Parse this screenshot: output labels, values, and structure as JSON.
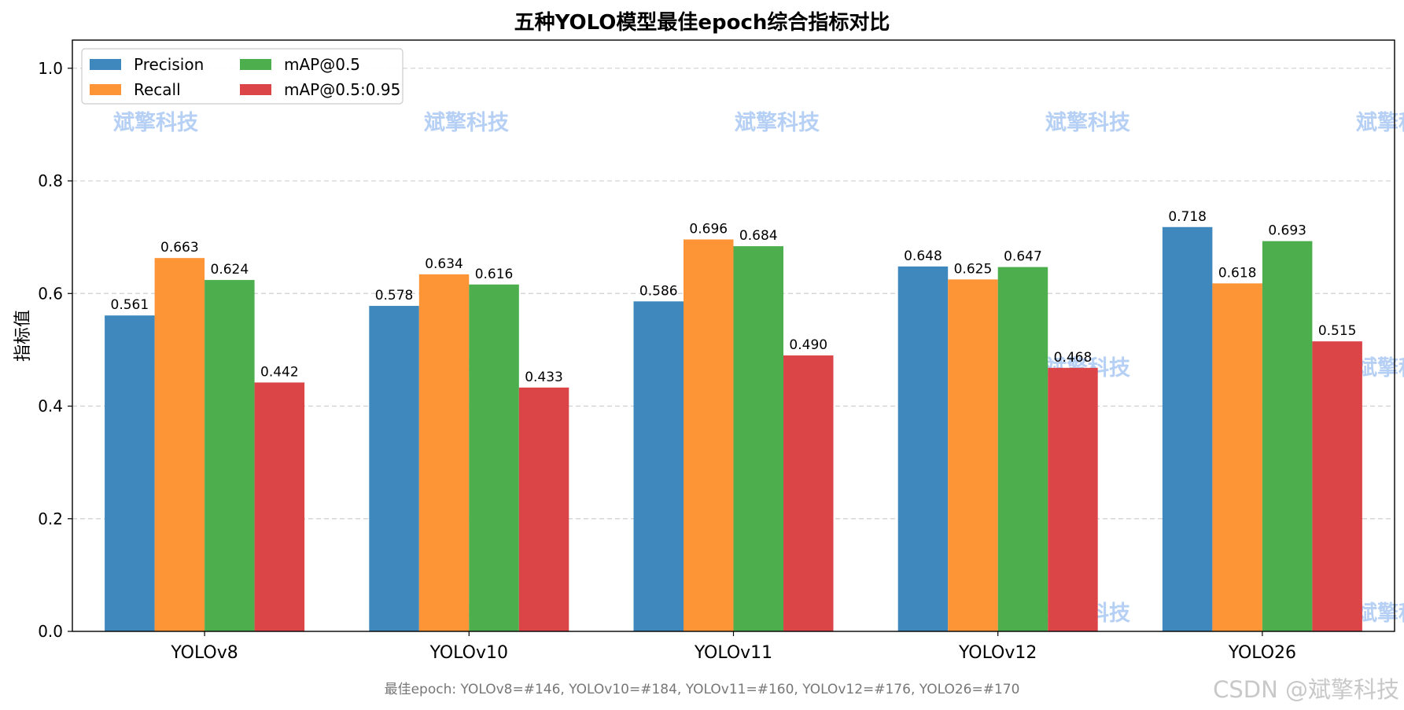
{
  "chart_data": {
    "type": "bar",
    "title": "五种YOLO模型最佳epoch综合指标对比",
    "xlabel": "",
    "ylabel": "指标值",
    "categories": [
      "YOLOv8",
      "YOLOv10",
      "YOLOv11",
      "YOLOv12",
      "YOLO26"
    ],
    "series": [
      {
        "name": "Precision",
        "color": "#3f88be",
        "values": [
          0.561,
          0.578,
          0.586,
          0.648,
          0.718
        ]
      },
      {
        "name": "Recall",
        "color": "#fd9537",
        "values": [
          0.663,
          0.634,
          0.696,
          0.625,
          0.618
        ]
      },
      {
        "name": "mAP@0.5",
        "color": "#4cae4c",
        "values": [
          0.624,
          0.616,
          0.684,
          0.647,
          0.693
        ]
      },
      {
        "name": "mAP@0.5:0.95",
        "color": "#db4548",
        "values": [
          0.442,
          0.433,
          0.49,
          0.468,
          0.515
        ]
      }
    ],
    "ylim": [
      0,
      1.05
    ],
    "yticks": [
      "0.0",
      "0.2",
      "0.4",
      "0.6",
      "0.8",
      "1.0"
    ],
    "grid": true,
    "legend_position": "top-left",
    "data_labels": true,
    "footnote": "最佳epoch: YOLOv8=#146, YOLOv10=#184, YOLOv11=#160, YOLOv12=#176, YOLO26=#170"
  },
  "watermark": {
    "text": "斌擎科技",
    "color": "#a9c8f3",
    "corner_text": "CSDN @斌擎科技"
  }
}
